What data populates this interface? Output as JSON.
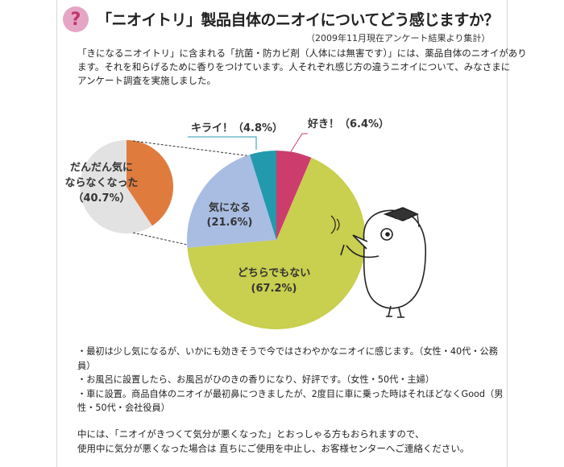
{
  "header": {
    "icon": "question-icon",
    "question_mark": "?",
    "title": "「ニオイトリ」製品自体のニオイについてどう感じますか？",
    "note": "（2009年11月現在アンケート結果より集計）"
  },
  "intro": {
    "lines": [
      "「きになるニオイトリ」に含まれる「抗菌・防カビ剤（人体には無害です）」には、薬品自体のニオイがあり",
      "ます。それを和らげるために香りをつけています。人それぞれ感じ方の違うニオイについて、みなさまに",
      "アンケート調査を実施しました。"
    ]
  },
  "chart_data": {
    "type": "pie",
    "slices": [
      {
        "label": "好き！",
        "display": "好き！（6.4%）",
        "value": 6.4,
        "color": "#cc3d6e"
      },
      {
        "label": "どちらでもない",
        "display": "(67.2%)",
        "value": 67.2,
        "color": "#c9cf4e"
      },
      {
        "label": "気になる",
        "display": "(21.6%)",
        "value": 21.6,
        "color": "#a9bde2"
      },
      {
        "label": "キライ！",
        "display": "キライ！（4.8%）",
        "value": 4.8,
        "color": "#2399ad"
      }
    ],
    "sub_pie": {
      "parent": "気になる",
      "label_line1": "だんだん気に",
      "label_line2": "ならなくなった",
      "value_text": "（40.7%）",
      "value": 40.7,
      "color": "#e07b3e",
      "rest_color": "#e2e2e2"
    }
  },
  "comments": {
    "lines": [
      "・最初は少し気になるが、いかにも効きそうで今ではさわやかなニオイに感じます。（女性・40代・公務",
      "員）",
      "・お風呂に設置したら、お風呂がひのきの香りになり、好評です。（女性・50代・主婦）",
      "・車に設置。商品自体のニオイが最初鼻につきましたが、2度目に車に乗った時はそれほどなくGood（男",
      "性・50代・会社役員）"
    ]
  },
  "closing": {
    "lines": [
      "中には、「ニオイがきつくて気分が悪くなった」とおっしゃる方もおられますので、",
      "使用中に気分が悪くなった場合は 直ちにご使用を中止し、お客様センターへご連絡ください。"
    ]
  },
  "mascot": {
    "icon": "bird-mascot-icon"
  }
}
